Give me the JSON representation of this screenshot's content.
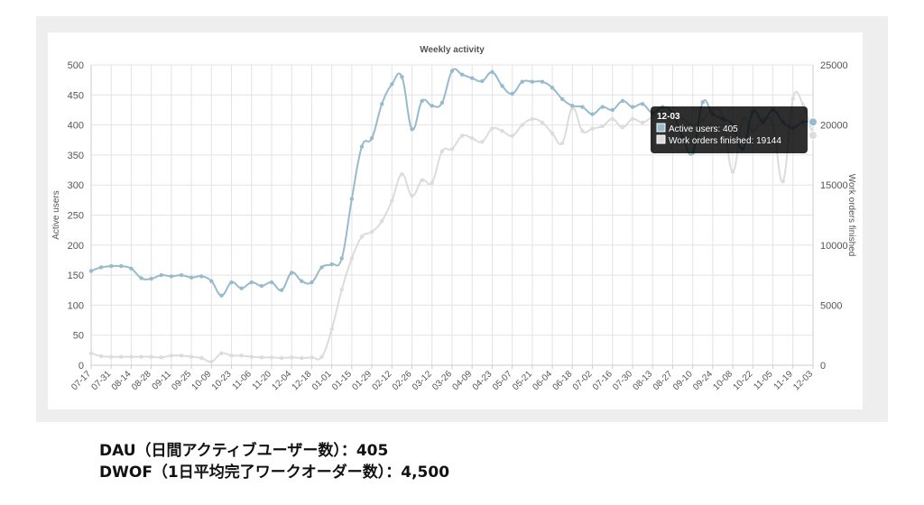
{
  "caption": {
    "line1": "DAU（日間アクティブユーザー数）：405",
    "line2": "DWOF（1日平均完了ワークオーダー数）：4,500"
  },
  "chart_data": {
    "type": "line",
    "title": "Weekly activity",
    "xlabel": "",
    "ylabel_left": "Active users",
    "ylabel_right": "Work orders finished",
    "ylim_left": [
      0,
      500
    ],
    "ylim_right": [
      0,
      25000
    ],
    "yticks_left": [
      0,
      50,
      100,
      150,
      200,
      250,
      300,
      350,
      400,
      450,
      500
    ],
    "yticks_right": [
      0,
      5000,
      10000,
      15000,
      20000,
      25000
    ],
    "grid": true,
    "tick_labels": [
      "07-17",
      "07-31",
      "08-14",
      "08-28",
      "09-11",
      "09-25",
      "10-09",
      "10-23",
      "11-06",
      "11-20",
      "12-04",
      "12-18",
      "01-01",
      "01-15",
      "01-29",
      "02-12",
      "02-26",
      "03-12",
      "03-26",
      "04-09",
      "04-23",
      "05-07",
      "05-21",
      "06-04",
      "06-18",
      "07-02",
      "07-16",
      "07-30",
      "08-13",
      "08-27",
      "09-10",
      "09-24",
      "10-08",
      "10-22",
      "11-05",
      "11-19",
      "12-03"
    ],
    "x": [
      "07-17",
      "07-24",
      "07-31",
      "08-07",
      "08-14",
      "08-21",
      "08-28",
      "09-04",
      "09-11",
      "09-18",
      "09-25",
      "10-02",
      "10-09",
      "10-16",
      "10-23",
      "10-30",
      "11-06",
      "11-13",
      "11-20",
      "11-27",
      "12-04",
      "12-11",
      "12-18",
      "12-25",
      "01-01",
      "01-08",
      "01-15",
      "01-22",
      "01-29",
      "02-05",
      "02-12",
      "02-19",
      "02-26",
      "03-05",
      "03-12",
      "03-19",
      "03-26",
      "04-02",
      "04-09",
      "04-16",
      "04-23",
      "04-30",
      "05-07",
      "05-14",
      "05-21",
      "05-28",
      "06-04",
      "06-11",
      "06-18",
      "06-25",
      "07-02",
      "07-09",
      "07-16",
      "07-23",
      "07-30",
      "08-06",
      "08-13",
      "08-20",
      "08-27",
      "09-03",
      "09-10",
      "09-17",
      "09-24",
      "10-01",
      "10-08",
      "10-15",
      "10-22",
      "10-29",
      "11-05",
      "11-12",
      "11-19",
      "11-26",
      "12-03"
    ],
    "series": [
      {
        "name": "Active users",
        "axis": "left",
        "color": "#97bbcd",
        "values": [
          157,
          163,
          165,
          165,
          161,
          145,
          144,
          150,
          148,
          150,
          146,
          148,
          140,
          116,
          138,
          128,
          138,
          132,
          138,
          125,
          154,
          140,
          138,
          163,
          168,
          178,
          277,
          364,
          378,
          435,
          468,
          480,
          393,
          440,
          432,
          437,
          490,
          484,
          478,
          473,
          488,
          465,
          452,
          472,
          472,
          472,
          462,
          443,
          432,
          430,
          418,
          430,
          425,
          440,
          430,
          435,
          420,
          430,
          420,
          380,
          353,
          438,
          418,
          410,
          400,
          360,
          422,
          405,
          425,
          405,
          395,
          405,
          405
        ]
      },
      {
        "name": "Work orders finished",
        "axis": "right",
        "color": "#dcdcdc",
        "values": [
          1000,
          750,
          700,
          700,
          700,
          700,
          700,
          650,
          800,
          800,
          700,
          600,
          300,
          1000,
          800,
          800,
          700,
          650,
          650,
          600,
          650,
          600,
          650,
          700,
          3000,
          6300,
          8900,
          10700,
          11100,
          12000,
          13700,
          15900,
          14100,
          15400,
          15200,
          17800,
          18000,
          19100,
          18900,
          18600,
          19700,
          19500,
          19100,
          20000,
          20500,
          20200,
          19300,
          18500,
          21400,
          19500,
          19700,
          19900,
          20500,
          19800,
          20500,
          20200,
          20700,
          21000,
          20700,
          20500,
          20000,
          20400,
          21300,
          20600,
          16100,
          20500,
          19500,
          20500,
          20000,
          15300,
          22200,
          21700,
          19144
        ]
      }
    ],
    "tooltip": {
      "title": "12-03",
      "lines": [
        "Active users: 405",
        "Work orders finished: 19144"
      ]
    }
  }
}
